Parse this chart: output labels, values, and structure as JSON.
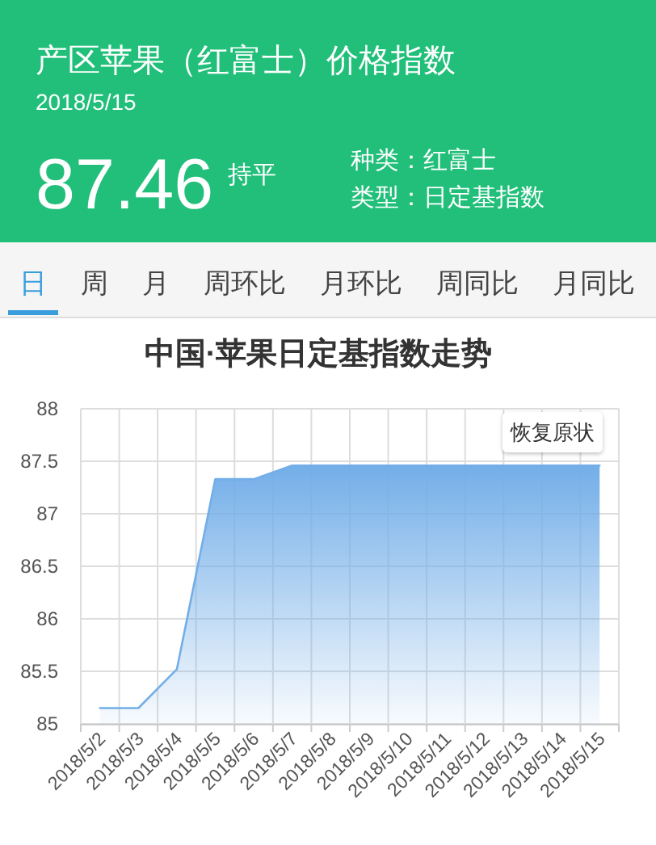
{
  "chart_data": [
    {
      "type": "other",
      "title": "产区苹果（红富士）价格指数",
      "subtitle": "2018/5/15",
      "color": "#21bf7a",
      "annotations": [
        "87.46",
        "持平",
        "种类：红富士",
        "类型：日定基指数"
      ]
    },
    {
      "type": "other",
      "categories": [
        "日",
        "周",
        "月",
        "周环比",
        "月环比",
        "周同比",
        "月同比"
      ]
    },
    {
      "type": "area",
      "title": "中国·苹果日定基指数走势",
      "categories": [
        "2018/5/2",
        "2018/5/3",
        "2018/5/4",
        "2018/5/5",
        "2018/5/6",
        "2018/5/7",
        "2018/5/8",
        "2018/5/9",
        "2018/5/10",
        "2018/5/11",
        "2018/5/12",
        "2018/5/13",
        "2018/5/14",
        "2018/5/15"
      ],
      "series": [
        {
          "color": "#73aee8",
          "values": [
            85.15,
            85.15,
            85.52,
            87.33,
            87.33,
            87.46,
            87.46,
            87.46,
            87.46,
            87.46,
            87.46,
            87.46,
            87.46,
            87.46
          ]
        }
      ],
      "ylim": [
        85,
        88
      ],
      "yticks": [
        85,
        85.5,
        86,
        86.5,
        87,
        87.5,
        88
      ],
      "grid": true,
      "annotations": [
        "恢复原状"
      ]
    }
  ]
}
